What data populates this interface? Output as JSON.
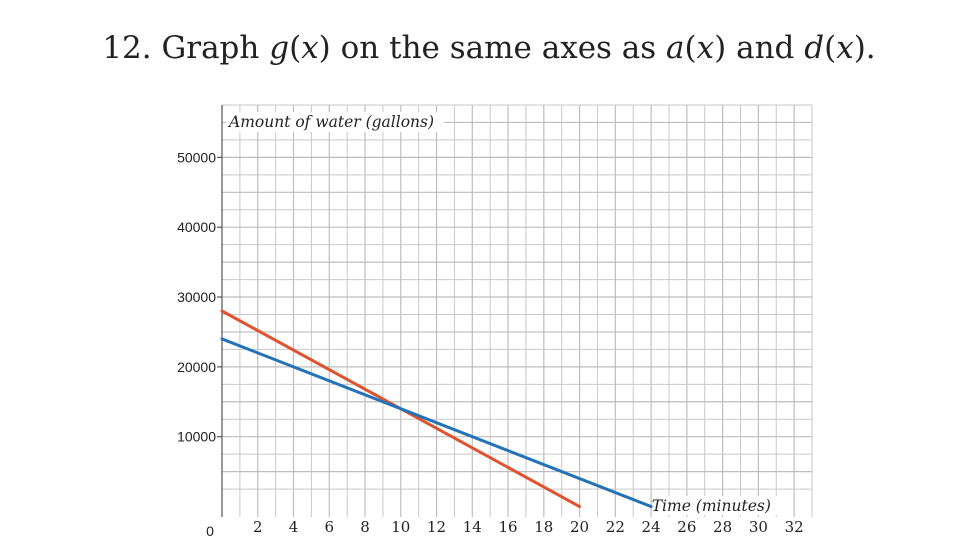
{
  "title": {
    "prefix": "12. Graph ",
    "g": "g",
    "x1": "x",
    "mid1": " on the same axes as ",
    "a": "a",
    "x2": "x",
    "mid2": " and ",
    "d": "d",
    "x3": "x",
    "end": "."
  },
  "chart_data": {
    "type": "line",
    "xlabel": "Time (minutes)",
    "ylabel": "Amount of water (gallons)",
    "xlim": [
      0,
      33
    ],
    "ylim": [
      -1500,
      57500
    ],
    "x_ticks": [
      2,
      4,
      6,
      8,
      10,
      12,
      14,
      16,
      18,
      20,
      22,
      24,
      26,
      28,
      30,
      32
    ],
    "y_ticks": [
      10000,
      20000,
      30000,
      40000,
      50000
    ],
    "origin_label": "0",
    "grid": true,
    "series": [
      {
        "color": "#e0532f",
        "x": [
          0,
          20
        ],
        "y": [
          28000,
          0
        ]
      },
      {
        "color": "#2472b8",
        "x": [
          0,
          24
        ],
        "y": [
          24000,
          0
        ]
      }
    ]
  }
}
